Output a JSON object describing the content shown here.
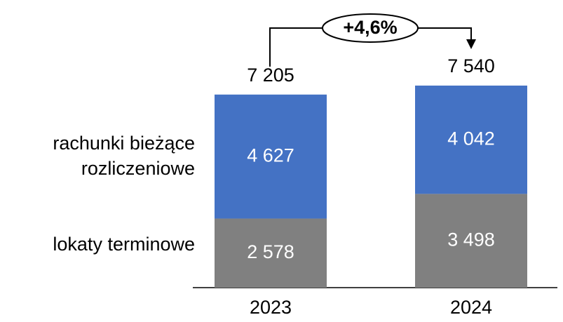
{
  "chart_data": {
    "type": "stacked_bar",
    "categories": [
      "2023",
      "2024"
    ],
    "series": [
      {
        "name": "lokaty terminowe",
        "color": "#808080",
        "values": [
          2578,
          3498
        ],
        "value_labels": [
          "2 578",
          "3 498"
        ]
      },
      {
        "name": "rachunki bieżące rozliczeniowe",
        "color": "#4472c4",
        "values": [
          4627,
          4042
        ],
        "value_labels": [
          "4 627",
          "4 042"
        ]
      }
    ],
    "totals": [
      7205,
      7540
    ],
    "total_labels": [
      "7 205",
      "7 540"
    ],
    "annotation": "+4,6%"
  }
}
